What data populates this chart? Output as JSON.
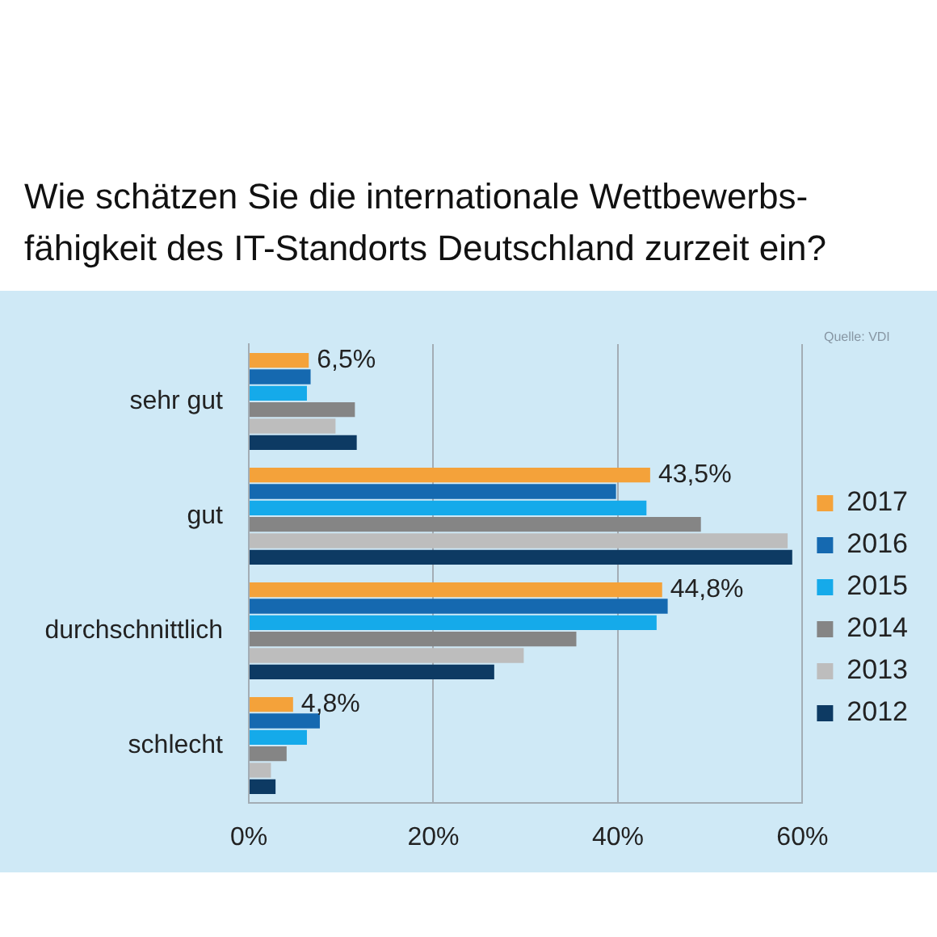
{
  "chart_data": {
    "type": "bar",
    "orientation": "horizontal",
    "title": "Wie schätzen Sie die internationale Wettbewerbs-fähigkeit des IT-Standorts Deutschland zurzeit ein?",
    "categories": [
      "sehr gut",
      "gut",
      "durchschnittlich",
      "schlecht"
    ],
    "series": [
      {
        "name": "2017",
        "color": "#f4a23a",
        "values": [
          6.5,
          43.5,
          44.8,
          4.8
        ],
        "value_labels": [
          "6,5%",
          "43,5%",
          "44,8%",
          "4,8%"
        ]
      },
      {
        "name": "2016",
        "color": "#1569b0",
        "values": [
          6.7,
          39.8,
          45.4,
          7.7
        ]
      },
      {
        "name": "2015",
        "color": "#15aaea",
        "values": [
          6.3,
          43.1,
          44.2,
          6.3
        ]
      },
      {
        "name": "2014",
        "color": "#858585",
        "values": [
          11.5,
          49.0,
          35.5,
          4.1
        ]
      },
      {
        "name": "2013",
        "color": "#bdbdbd",
        "values": [
          9.4,
          58.4,
          29.8,
          2.4
        ]
      },
      {
        "name": "2012",
        "color": "#0d3a63",
        "values": [
          11.7,
          58.9,
          26.6,
          2.9
        ]
      }
    ],
    "xlim": [
      0,
      60
    ],
    "xticks": [
      {
        "value": 0,
        "label": "0%"
      },
      {
        "value": 20,
        "label": "20%"
      },
      {
        "value": 40,
        "label": "40%"
      },
      {
        "value": 60,
        "label": "60%"
      }
    ],
    "grid": "x",
    "legend": "right",
    "annotations": [
      "Quelle: VDI"
    ]
  }
}
